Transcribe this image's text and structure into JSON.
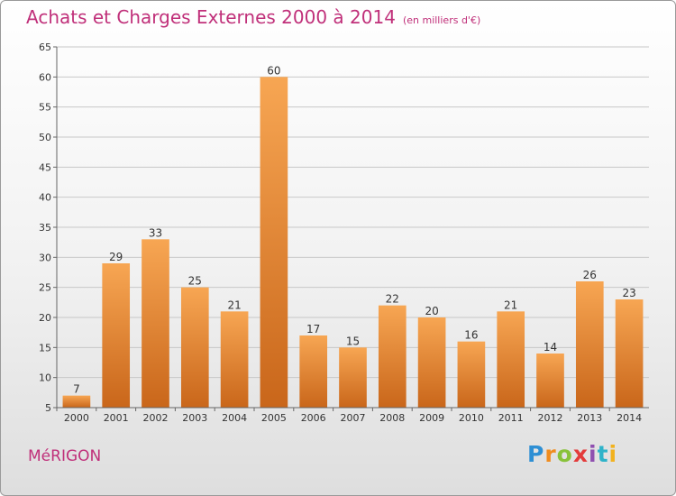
{
  "header": {
    "title": "Achats et Charges Externes 2000 à 2014",
    "subtitle": "(en milliers d'€)"
  },
  "location": {
    "name": "MéRIGON"
  },
  "logo": {
    "letters": [
      "P",
      "r",
      "o",
      "x",
      "i",
      "t",
      "i"
    ],
    "colors": [
      "#2e8fd4",
      "#f08c1e",
      "#88c23a",
      "#e33b3b",
      "#8f4fb0",
      "#2eb3c9",
      "#f2b21e"
    ]
  },
  "colors": {
    "title": "#c0307a",
    "bar_light": "#f7a653",
    "bar_dark": "#c9661a"
  },
  "chart_data": {
    "type": "bar",
    "title": "Achats et Charges Externes 2000 à 2014",
    "subtitle": "(en milliers d'€)",
    "xlabel": "",
    "ylabel": "",
    "categories": [
      "2000",
      "2001",
      "2002",
      "2003",
      "2004",
      "2005",
      "2006",
      "2007",
      "2008",
      "2009",
      "2010",
      "2011",
      "2012",
      "2013",
      "2014"
    ],
    "values": [
      7,
      29,
      33,
      25,
      21,
      60,
      17,
      15,
      22,
      20,
      16,
      21,
      14,
      26,
      23
    ],
    "ylim": [
      5,
      65
    ],
    "yticks": [
      5,
      10,
      15,
      20,
      25,
      30,
      35,
      40,
      45,
      50,
      55,
      60,
      65
    ],
    "grid": true,
    "legend": "none"
  }
}
